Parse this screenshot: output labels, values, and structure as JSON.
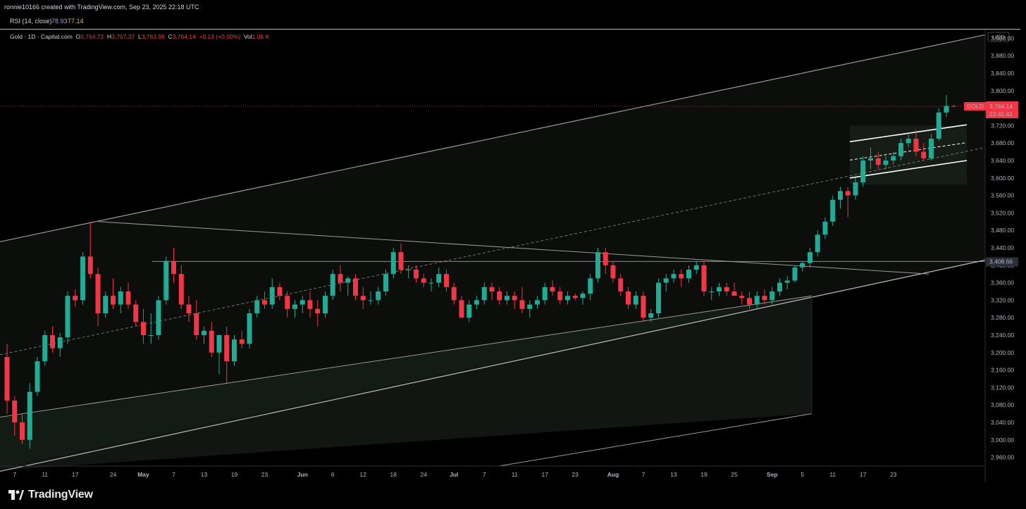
{
  "header": {
    "credit": "ronnie10166 created with TradingView.com, Sep 23, 2025 22:18 UTC"
  },
  "rsi": {
    "label": "RSI (14, close)",
    "value1": "78.93",
    "value2": "77.14"
  },
  "legend": {
    "symbol": "Gold · 1D · Capital.com",
    "o_label": "O",
    "o": "3,764.72",
    "h_label": "H",
    "h": "3,767.37",
    "l_label": "L",
    "l": "3,763.96",
    "c_label": "C",
    "c": "3,764.14",
    "change": "+0.13 (+0.00%)",
    "vol_label": "Vol",
    "vol": "1.06 K"
  },
  "footer": {
    "brand": "TradingView"
  },
  "chart_data": {
    "type": "candlestick",
    "currency": "USD",
    "symbol_tag": "GOLD",
    "last_price": "3,764.14",
    "countdown": "22:41:41",
    "level_label": "3,408.66",
    "level_value": 3408.66,
    "ylim": [
      2940,
      3940
    ],
    "yticks": [
      2960,
      3000,
      3040,
      3080,
      3120,
      3160,
      3200,
      3240,
      3280,
      3320,
      3360,
      3400,
      3440,
      3480,
      3520,
      3560,
      3600,
      3640,
      3680,
      3720,
      3760,
      3800,
      3840,
      3880,
      3920
    ],
    "ytick_labels": [
      "2,960.00",
      "3,000.00",
      "3,040.00",
      "3,080.00",
      "3,120.00",
      "3,160.00",
      "3,200.00",
      "3,240.00",
      "3,280.00",
      "3,320.00",
      "3,360.00",
      "3,400.00",
      "3,440.00",
      "3,480.00",
      "3,520.00",
      "3,560.00",
      "3,600.00",
      "3,640.00",
      "3,680.00",
      "3,720.00",
      "3,760.00",
      "3,800.00",
      "3,840.00",
      "3,880.00",
      "3,920.00"
    ],
    "xticks": [
      {
        "i": 1,
        "label": "7",
        "bold": false
      },
      {
        "i": 5,
        "label": "11",
        "bold": false
      },
      {
        "i": 9,
        "label": "17",
        "bold": false
      },
      {
        "i": 14,
        "label": "24",
        "bold": false
      },
      {
        "i": 18,
        "label": "May",
        "bold": true
      },
      {
        "i": 22,
        "label": "7",
        "bold": false
      },
      {
        "i": 26,
        "label": "13",
        "bold": false
      },
      {
        "i": 30,
        "label": "19",
        "bold": false
      },
      {
        "i": 34,
        "label": "23",
        "bold": false
      },
      {
        "i": 39,
        "label": "Jun",
        "bold": true
      },
      {
        "i": 43,
        "label": "6",
        "bold": false
      },
      {
        "i": 47,
        "label": "12",
        "bold": false
      },
      {
        "i": 51,
        "label": "18",
        "bold": false
      },
      {
        "i": 55,
        "label": "24",
        "bold": false
      },
      {
        "i": 59,
        "label": "Jul",
        "bold": true
      },
      {
        "i": 63,
        "label": "7",
        "bold": false
      },
      {
        "i": 67,
        "label": "11",
        "bold": false
      },
      {
        "i": 71,
        "label": "17",
        "bold": false
      },
      {
        "i": 75,
        "label": "23",
        "bold": false
      },
      {
        "i": 80,
        "label": "Aug",
        "bold": true
      },
      {
        "i": 84,
        "label": "7",
        "bold": false
      },
      {
        "i": 88,
        "label": "13",
        "bold": false
      },
      {
        "i": 92,
        "label": "19",
        "bold": false
      },
      {
        "i": 96,
        "label": "25",
        "bold": false
      },
      {
        "i": 101,
        "label": "Sep",
        "bold": true
      },
      {
        "i": 105,
        "label": "5",
        "bold": false
      },
      {
        "i": 109,
        "label": "11",
        "bold": false
      },
      {
        "i": 113,
        "label": "17",
        "bold": false
      },
      {
        "i": 117,
        "label": "23",
        "bold": false
      }
    ],
    "candles": [
      [
        3190,
        3220,
        3060,
        3090
      ],
      [
        3090,
        3100,
        3010,
        3040
      ],
      [
        3040,
        3060,
        2990,
        3000
      ],
      [
        3000,
        3130,
        2980,
        3110
      ],
      [
        3110,
        3190,
        3100,
        3180
      ],
      [
        3180,
        3250,
        3170,
        3240
      ],
      [
        3240,
        3260,
        3200,
        3210
      ],
      [
        3210,
        3245,
        3190,
        3235
      ],
      [
        3235,
        3340,
        3220,
        3330
      ],
      [
        3330,
        3345,
        3305,
        3320
      ],
      [
        3320,
        3430,
        3310,
        3420
      ],
      [
        3420,
        3500,
        3370,
        3380
      ],
      [
        3380,
        3395,
        3260,
        3290
      ],
      [
        3290,
        3340,
        3280,
        3330
      ],
      [
        3330,
        3370,
        3300,
        3310
      ],
      [
        3310,
        3350,
        3290,
        3340
      ],
      [
        3340,
        3360,
        3300,
        3310
      ],
      [
        3310,
        3320,
        3260,
        3270
      ],
      [
        3270,
        3300,
        3220,
        3240
      ],
      [
        3240,
        3290,
        3220,
        3240
      ],
      [
        3240,
        3330,
        3230,
        3320
      ],
      [
        3320,
        3420,
        3310,
        3410
      ],
      [
        3410,
        3440,
        3360,
        3380
      ],
      [
        3380,
        3400,
        3300,
        3310
      ],
      [
        3310,
        3330,
        3270,
        3290
      ],
      [
        3290,
        3320,
        3230,
        3240
      ],
      [
        3240,
        3260,
        3220,
        3250
      ],
      [
        3250,
        3270,
        3190,
        3200
      ],
      [
        3200,
        3240,
        3150,
        3240
      ],
      [
        3240,
        3260,
        3130,
        3180
      ],
      [
        3180,
        3240,
        3170,
        3230
      ],
      [
        3230,
        3250,
        3210,
        3220
      ],
      [
        3220,
        3300,
        3210,
        3290
      ],
      [
        3290,
        3330,
        3280,
        3320
      ],
      [
        3320,
        3340,
        3300,
        3310
      ],
      [
        3310,
        3370,
        3300,
        3350
      ],
      [
        3350,
        3360,
        3320,
        3330
      ],
      [
        3330,
        3340,
        3280,
        3300
      ],
      [
        3300,
        3320,
        3280,
        3310
      ],
      [
        3310,
        3330,
        3290,
        3320
      ],
      [
        3320,
        3340,
        3280,
        3300
      ],
      [
        3300,
        3320,
        3260,
        3290
      ],
      [
        3290,
        3340,
        3280,
        3330
      ],
      [
        3330,
        3390,
        3320,
        3380
      ],
      [
        3380,
        3400,
        3340,
        3360
      ],
      [
        3360,
        3375,
        3330,
        3370
      ],
      [
        3370,
        3380,
        3320,
        3330
      ],
      [
        3330,
        3350,
        3300,
        3320
      ],
      [
        3320,
        3340,
        3310,
        3320
      ],
      [
        3320,
        3350,
        3310,
        3340
      ],
      [
        3340,
        3390,
        3330,
        3380
      ],
      [
        3380,
        3440,
        3370,
        3430
      ],
      [
        3430,
        3450,
        3380,
        3390
      ],
      [
        3390,
        3400,
        3370,
        3390
      ],
      [
        3390,
        3400,
        3360,
        3370
      ],
      [
        3370,
        3380,
        3350,
        3360
      ],
      [
        3360,
        3370,
        3340,
        3360
      ],
      [
        3360,
        3395,
        3350,
        3380
      ],
      [
        3380,
        3390,
        3340,
        3350
      ],
      [
        3350,
        3360,
        3310,
        3320
      ],
      [
        3320,
        3330,
        3280,
        3280
      ],
      [
        3280,
        3320,
        3270,
        3310
      ],
      [
        3310,
        3330,
        3300,
        3320
      ],
      [
        3320,
        3360,
        3310,
        3350
      ],
      [
        3350,
        3360,
        3320,
        3340
      ],
      [
        3340,
        3350,
        3310,
        3320
      ],
      [
        3320,
        3340,
        3310,
        3330
      ],
      [
        3330,
        3340,
        3300,
        3320
      ],
      [
        3320,
        3350,
        3290,
        3300
      ],
      [
        3300,
        3320,
        3280,
        3310
      ],
      [
        3310,
        3330,
        3300,
        3320
      ],
      [
        3320,
        3360,
        3310,
        3350
      ],
      [
        3350,
        3365,
        3330,
        3340
      ],
      [
        3340,
        3350,
        3310,
        3320
      ],
      [
        3320,
        3340,
        3310,
        3330
      ],
      [
        3330,
        3335,
        3320,
        3325
      ],
      [
        3325,
        3340,
        3310,
        3335
      ],
      [
        3335,
        3380,
        3320,
        3370
      ],
      [
        3370,
        3440,
        3360,
        3430
      ],
      [
        3430,
        3440,
        3380,
        3400
      ],
      [
        3400,
        3410,
        3360,
        3370
      ],
      [
        3370,
        3380,
        3330,
        3340
      ],
      [
        3340,
        3350,
        3300,
        3310
      ],
      [
        3310,
        3340,
        3300,
        3330
      ],
      [
        3330,
        3340,
        3270,
        3280
      ],
      [
        3280,
        3300,
        3270,
        3290
      ],
      [
        3290,
        3370,
        3280,
        3360
      ],
      [
        3360,
        3380,
        3340,
        3370
      ],
      [
        3370,
        3390,
        3360,
        3380
      ],
      [
        3380,
        3390,
        3350,
        3370
      ],
      [
        3370,
        3400,
        3360,
        3390
      ],
      [
        3390,
        3410,
        3380,
        3400
      ],
      [
        3400,
        3410,
        3330,
        3340
      ],
      [
        3340,
        3350,
        3320,
        3340
      ],
      [
        3340,
        3360,
        3330,
        3350
      ],
      [
        3350,
        3360,
        3330,
        3340
      ],
      [
        3340,
        3360,
        3330,
        3330
      ],
      [
        3330,
        3340,
        3310,
        3325
      ],
      [
        3325,
        3340,
        3300,
        3310
      ],
      [
        3310,
        3340,
        3300,
        3330
      ],
      [
        3330,
        3345,
        3310,
        3320
      ],
      [
        3320,
        3350,
        3310,
        3340
      ],
      [
        3340,
        3370,
        3330,
        3360
      ],
      [
        3360,
        3375,
        3345,
        3365
      ],
      [
        3365,
        3400,
        3360,
        3395
      ],
      [
        3395,
        3410,
        3385,
        3405
      ],
      [
        3405,
        3440,
        3395,
        3430
      ],
      [
        3430,
        3480,
        3420,
        3470
      ],
      [
        3470,
        3510,
        3460,
        3500
      ],
      [
        3500,
        3560,
        3490,
        3550
      ],
      [
        3550,
        3580,
        3530,
        3570
      ],
      [
        3570,
        3580,
        3510,
        3560
      ],
      [
        3560,
        3600,
        3550,
        3590
      ],
      [
        3590,
        3650,
        3580,
        3640
      ],
      [
        3640,
        3670,
        3620,
        3645
      ],
      [
        3645,
        3660,
        3620,
        3630
      ],
      [
        3630,
        3650,
        3620,
        3640
      ],
      [
        3640,
        3660,
        3630,
        3650
      ],
      [
        3650,
        3690,
        3640,
        3680
      ],
      [
        3680,
        3700,
        3670,
        3690
      ],
      [
        3690,
        3710,
        3650,
        3660
      ],
      [
        3660,
        3680,
        3640,
        3645
      ],
      [
        3645,
        3700,
        3640,
        3690
      ],
      [
        3690,
        3760,
        3685,
        3750
      ],
      [
        3750,
        3790,
        3740,
        3765
      ],
      [
        3764.72,
        3767.37,
        3763.96,
        3764.14
      ]
    ]
  }
}
